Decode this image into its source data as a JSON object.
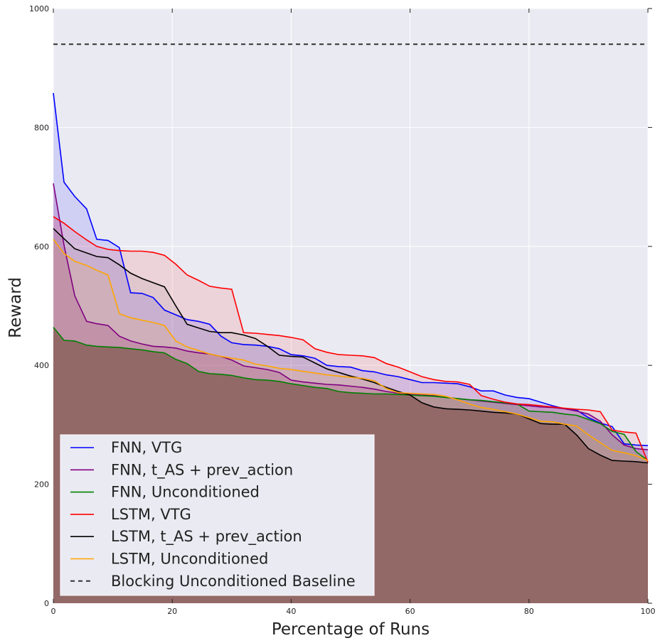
{
  "chart_data": {
    "type": "line",
    "title": "",
    "xlabel": "Percentage of Runs",
    "ylabel": "Reward",
    "xlim": [
      0,
      100
    ],
    "ylim": [
      0,
      1000
    ],
    "xticks": [
      0,
      20,
      40,
      60,
      80,
      100
    ],
    "yticks": [
      0,
      200,
      400,
      600,
      800,
      1000
    ],
    "grid": true,
    "legend_position": "bottom-left",
    "colors": {
      "background": "#eaeaf2",
      "grid": "#ffffff",
      "fill_base": "#ad9393"
    },
    "baseline": {
      "name": "Blocking Unconditioned Baseline",
      "value": 940,
      "color": "#333333",
      "style": "dashed"
    },
    "series": [
      {
        "name": "FNN, VTG",
        "color": "#0000ff",
        "fill": "rgba(120,120,255,0.22)",
        "x": [
          0,
          1.8,
          3.6,
          5.6,
          7.3,
          9.2,
          11.1,
          13,
          14.9,
          16.8,
          18.7,
          20.6,
          22.5,
          24.4,
          26.3,
          28.2,
          30,
          32,
          34,
          36,
          38,
          40,
          42,
          44,
          46,
          48,
          50,
          52,
          54,
          56,
          58,
          60,
          62,
          64,
          66,
          68,
          70,
          72,
          74,
          76,
          78,
          80,
          82,
          84,
          86,
          88,
          90,
          92,
          94,
          96,
          98,
          100
        ],
        "values": [
          858,
          708,
          684,
          663,
          612,
          610,
          598,
          522,
          521,
          514,
          493,
          485,
          477,
          474,
          469,
          449,
          438,
          435,
          434,
          432,
          428,
          418,
          416,
          412,
          400,
          398,
          397,
          391,
          389,
          384,
          381,
          376,
          371,
          371,
          370,
          369,
          364,
          357,
          357,
          350,
          346,
          344,
          338,
          332,
          327,
          325,
          312,
          303,
          297,
          268,
          266,
          265
        ]
      },
      {
        "name": "FNN, t_AS + prev_action",
        "color": "#800080",
        "fill": "rgba(128,0,128,0.18)",
        "x": [
          0,
          1.8,
          3.6,
          5.6,
          7.3,
          9.2,
          11.1,
          13,
          14.9,
          16.8,
          18.7,
          20.6,
          22.5,
          24.4,
          26.3,
          28.2,
          30,
          32,
          34,
          36,
          38,
          40,
          42,
          44,
          46,
          48,
          50,
          52,
          54,
          56,
          58,
          60,
          62,
          64,
          66,
          68,
          70,
          72,
          74,
          76,
          78,
          80,
          82,
          84,
          86,
          88,
          90,
          92,
          94,
          96,
          98,
          100
        ],
        "values": [
          706,
          602,
          517,
          474,
          470,
          467,
          449,
          441,
          436,
          432,
          431,
          429,
          424,
          421,
          419,
          415,
          409,
          399,
          396,
          393,
          388,
          375,
          372,
          370,
          368,
          367,
          365,
          363,
          360,
          356,
          353,
          351,
          350,
          349,
          346,
          344,
          342,
          340,
          338,
          336,
          334,
          332,
          330,
          329,
          327,
          323,
          318,
          306,
          283,
          266,
          260,
          258
        ]
      },
      {
        "name": "FNN, Unconditioned",
        "color": "#008000",
        "fill": "rgba(0,128,0,0.15)",
        "x": [
          0,
          1.8,
          3.6,
          5.6,
          7.3,
          9.2,
          11.1,
          13,
          14.9,
          16.8,
          18.7,
          20.6,
          22.5,
          24.4,
          26.3,
          28.2,
          30,
          32,
          34,
          36,
          38,
          40,
          42,
          44,
          46,
          48,
          50,
          52,
          54,
          56,
          58,
          60,
          62,
          64,
          66,
          68,
          70,
          72,
          74,
          76,
          78,
          80,
          82,
          84,
          86,
          88,
          90,
          92,
          94,
          96,
          98,
          100
        ],
        "values": [
          464,
          442,
          441,
          434,
          432,
          431,
          430,
          428,
          426,
          423,
          421,
          410,
          403,
          390,
          386,
          385,
          383,
          379,
          376,
          375,
          373,
          369,
          366,
          363,
          361,
          356,
          354,
          353,
          352,
          352,
          351,
          350,
          349,
          348,
          346,
          344,
          342,
          341,
          339,
          337,
          335,
          323,
          322,
          321,
          318,
          316,
          309,
          302,
          289,
          284,
          255,
          240
        ]
      },
      {
        "name": "LSTM, VTG",
        "color": "#ff0000",
        "fill": "rgba(255,0,0,0.10)",
        "x": [
          0,
          1.8,
          3.6,
          5.6,
          7.3,
          9.2,
          11.1,
          13,
          14.9,
          16.8,
          18.7,
          20.6,
          22.5,
          24.4,
          26.3,
          28.2,
          30,
          32,
          34,
          36,
          38,
          40,
          42,
          44,
          46,
          48,
          50,
          52,
          54,
          56,
          58,
          60,
          62,
          64,
          66,
          68,
          70,
          72,
          74,
          76,
          78,
          80,
          82,
          84,
          86,
          88,
          90,
          92,
          94,
          96,
          98,
          100
        ],
        "values": [
          650,
          639,
          625,
          611,
          600,
          595,
          593,
          592,
          592,
          590,
          585,
          570,
          552,
          543,
          533,
          530,
          528,
          455,
          454,
          452,
          450,
          447,
          443,
          428,
          422,
          418,
          417,
          416,
          413,
          403,
          397,
          389,
          381,
          376,
          373,
          372,
          368,
          349,
          343,
          338,
          335,
          334,
          332,
          330,
          328,
          326,
          325,
          322,
          291,
          288,
          286,
          237
        ]
      },
      {
        "name": "LSTM, t_AS + prev_action",
        "color": "#000000",
        "fill": "rgba(0,0,0,0.05)",
        "x": [
          0,
          1.8,
          3.6,
          5.6,
          7.3,
          9.2,
          11.1,
          13,
          14.9,
          16.8,
          18.7,
          20.6,
          22.5,
          24.4,
          26.3,
          28.2,
          30,
          32,
          34,
          36,
          38,
          40,
          42,
          44,
          46,
          48,
          50,
          52,
          54,
          56,
          58,
          60,
          62,
          64,
          66,
          68,
          70,
          72,
          74,
          76,
          78,
          80,
          82,
          84,
          86,
          88,
          90,
          92,
          94,
          96,
          98,
          100
        ],
        "values": [
          630,
          613,
          596,
          589,
          583,
          581,
          569,
          555,
          546,
          539,
          532,
          500,
          469,
          463,
          457,
          455,
          455,
          451,
          445,
          432,
          417,
          415,
          414,
          404,
          394,
          388,
          382,
          377,
          371,
          363,
          356,
          350,
          337,
          330,
          327,
          326,
          325,
          323,
          321,
          320,
          318,
          310,
          302,
          301,
          301,
          283,
          260,
          249,
          240,
          239,
          238,
          236
        ]
      },
      {
        "name": "LSTM, Unconditioned",
        "color": "#ffa500",
        "fill": "rgba(255,165,0,0.10)",
        "x": [
          0,
          1.8,
          3.6,
          5.6,
          7.3,
          9.2,
          11.1,
          13,
          14.9,
          16.8,
          18.7,
          20.6,
          22.5,
          24.4,
          26.3,
          28.2,
          30,
          32,
          34,
          36,
          38,
          40,
          42,
          44,
          46,
          48,
          50,
          52,
          54,
          56,
          58,
          60,
          62,
          64,
          66,
          68,
          70,
          72,
          74,
          76,
          78,
          80,
          82,
          84,
          86,
          88,
          90,
          92,
          94,
          96,
          98,
          100
        ],
        "values": [
          612,
          588,
          575,
          568,
          560,
          552,
          487,
          480,
          476,
          472,
          467,
          441,
          431,
          425,
          419,
          415,
          412,
          409,
          402,
          399,
          395,
          393,
          390,
          387,
          384,
          382,
          380,
          378,
          374,
          361,
          354,
          353,
          352,
          351,
          348,
          342,
          335,
          329,
          326,
          322,
          318,
          312,
          306,
          305,
          301,
          298,
          283,
          270,
          257,
          253,
          248,
          240
        ]
      }
    ]
  }
}
